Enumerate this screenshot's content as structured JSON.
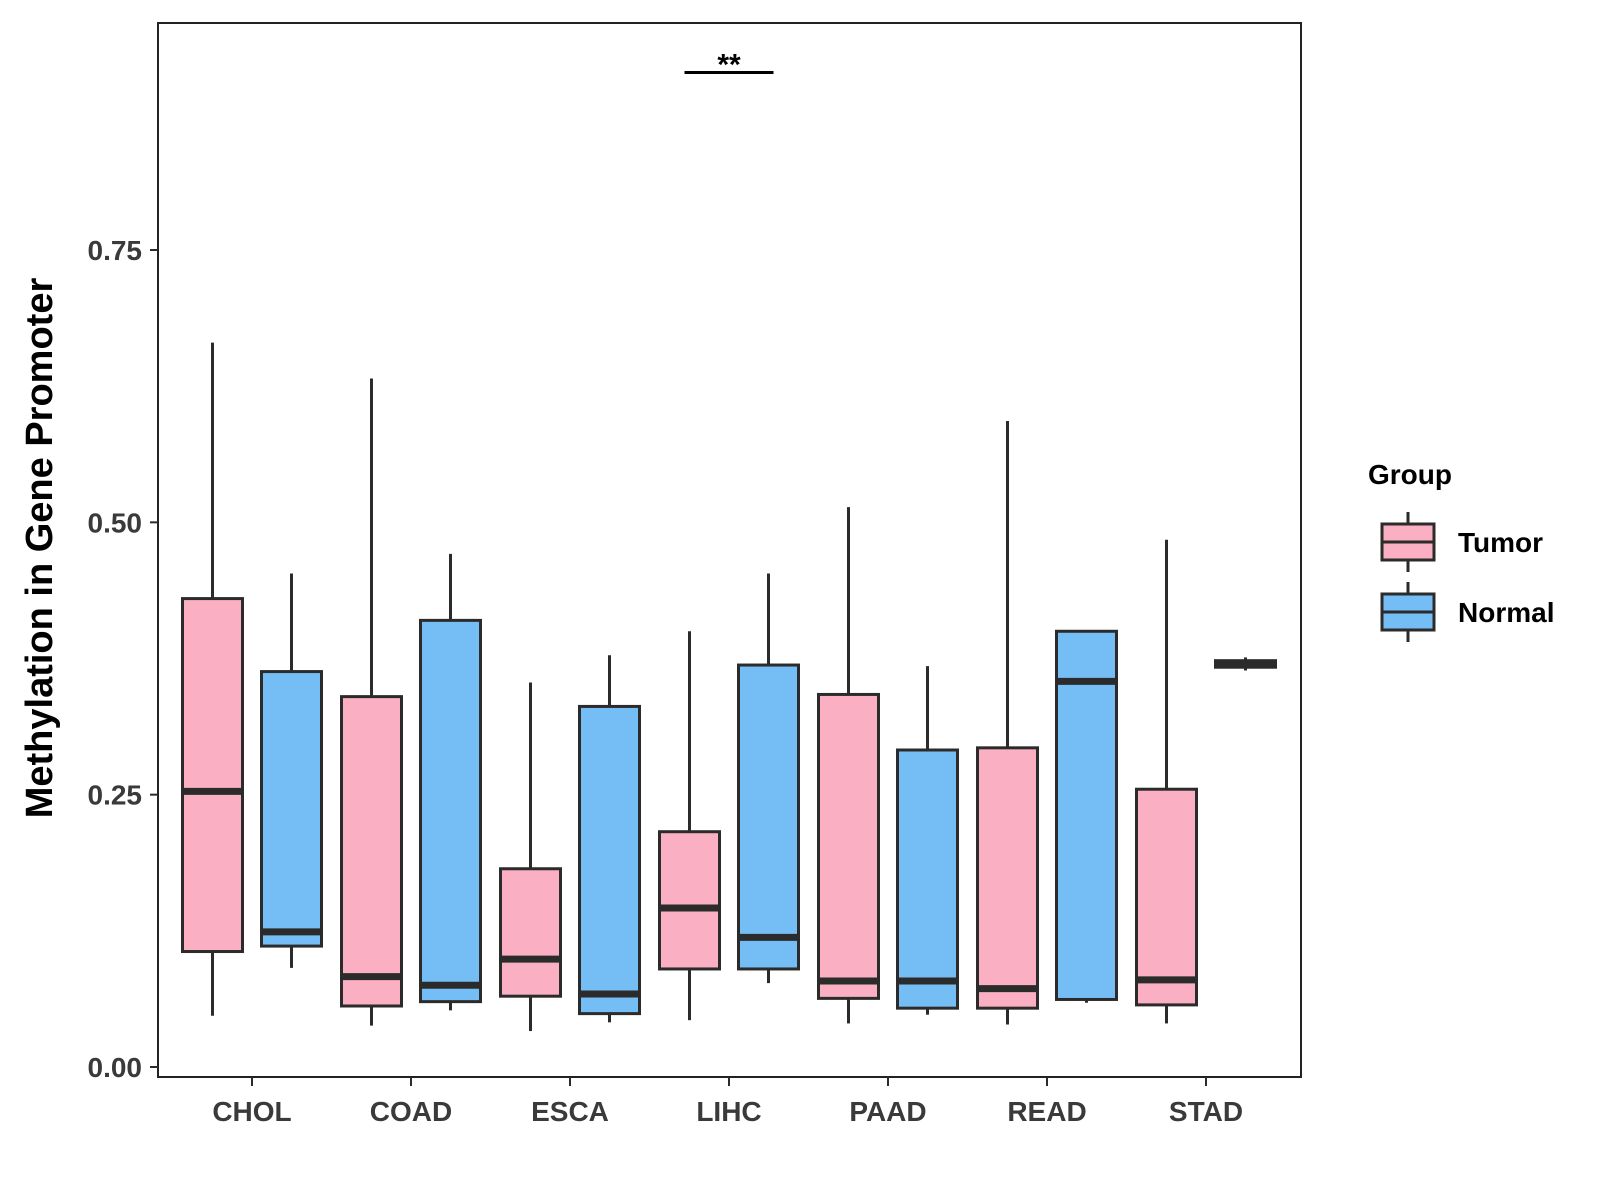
{
  "chart_data": {
    "type": "boxplot",
    "title": "",
    "xlabel": "",
    "ylabel": "Methylation in Gene Promoter",
    "ylim": [
      -0.01,
      0.96
    ],
    "yticks": [
      0.0,
      0.25,
      0.5,
      0.75
    ],
    "ytick_labels": [
      "0.00",
      "0.25",
      "0.50",
      "0.75"
    ],
    "categories": [
      "CHOL",
      "COAD",
      "ESCA",
      "LIHC",
      "PAAD",
      "READ",
      "STAD"
    ],
    "legend": {
      "title": "Group",
      "position": "right",
      "entries": [
        {
          "name": "Tumor",
          "color": "#FBAFC2"
        },
        {
          "name": "Normal",
          "color": "#75BEF5"
        }
      ]
    },
    "series": [
      {
        "name": "Tumor",
        "color": "#FBAFC2",
        "boxes": [
          {
            "category": "CHOL",
            "min": 0.047,
            "q1": 0.106,
            "median": 0.253,
            "q3": 0.43,
            "max": 0.665
          },
          {
            "category": "COAD",
            "min": 0.038,
            "q1": 0.056,
            "median": 0.083,
            "q3": 0.34,
            "max": 0.632
          },
          {
            "category": "ESCA",
            "min": 0.033,
            "q1": 0.065,
            "median": 0.099,
            "q3": 0.182,
            "max": 0.353
          },
          {
            "category": "LIHC",
            "min": 0.043,
            "q1": 0.09,
            "median": 0.146,
            "q3": 0.216,
            "max": 0.4
          },
          {
            "category": "PAAD",
            "min": 0.04,
            "q1": 0.063,
            "median": 0.079,
            "q3": 0.342,
            "max": 0.514
          },
          {
            "category": "READ",
            "min": 0.039,
            "q1": 0.054,
            "median": 0.072,
            "q3": 0.293,
            "max": 0.593
          },
          {
            "category": "STAD",
            "min": 0.04,
            "q1": 0.057,
            "median": 0.08,
            "q3": 0.255,
            "max": 0.484
          }
        ]
      },
      {
        "name": "Normal",
        "color": "#75BEF5",
        "boxes": [
          {
            "category": "CHOL",
            "min": 0.091,
            "q1": 0.111,
            "median": 0.124,
            "q3": 0.363,
            "max": 0.453
          },
          {
            "category": "COAD",
            "min": 0.052,
            "q1": 0.06,
            "median": 0.075,
            "q3": 0.41,
            "max": 0.471
          },
          {
            "category": "ESCA",
            "min": 0.041,
            "q1": 0.049,
            "median": 0.067,
            "q3": 0.331,
            "max": 0.378
          },
          {
            "category": "LIHC",
            "min": 0.077,
            "q1": 0.09,
            "median": 0.119,
            "q3": 0.369,
            "max": 0.453
          },
          {
            "category": "PAAD",
            "min": 0.048,
            "q1": 0.054,
            "median": 0.079,
            "q3": 0.291,
            "max": 0.368
          },
          {
            "category": "READ",
            "min": 0.059,
            "q1": 0.062,
            "median": 0.354,
            "q3": 0.4,
            "max": 0.4
          },
          {
            "category": "STAD",
            "min": 0.364,
            "q1": 0.367,
            "median": 0.37,
            "q3": 0.373,
            "max": 0.376
          }
        ]
      }
    ],
    "annotations": [
      {
        "category": "LIHC",
        "text": "**",
        "y": 0.913
      }
    ]
  }
}
